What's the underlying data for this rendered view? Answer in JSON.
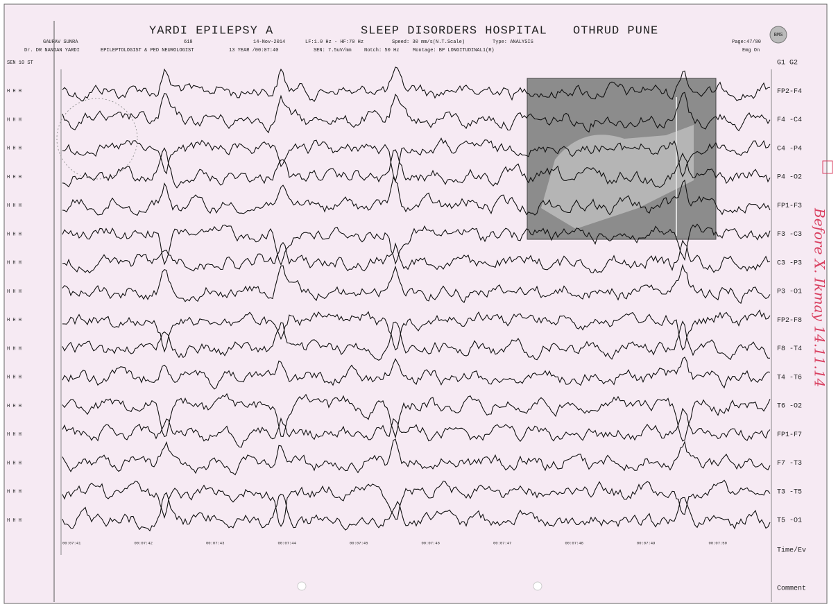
{
  "header": {
    "title": [
      "YARDI EPILEPSY A",
      "SLEEP DISORDERS HOSPITAL",
      "OTHRUD PUNE"
    ],
    "line1": [
      "GAURAV SUNRA",
      "618",
      "14-Nov-2014",
      "LF:1.0 Hz - HF:70 Hz",
      "Speed: 30 mm/s(N.T.Scale)",
      "Type: ANALYSIS",
      "Page:47/80"
    ],
    "line2": [
      "Dr. DR NANDAN YARDI",
      "EPILEPTOLOGIST & PED NEUROLOGIST",
      "13 YEAR /00:07:40",
      "SEN: 7.5uV/mm",
      "Notch: 50 Hz",
      "Montage: BP LONGITUDINAL1(R)",
      "Emg On"
    ],
    "logo": "BMS"
  },
  "left_header": "SEN 10 ST",
  "left_marker": "H  H  H",
  "channels": [
    "G1  G2",
    "FP2-F4",
    "F4 -C4",
    "C4 -P4",
    "P4 -O2",
    "FP1-F3",
    "F3 -C3",
    "C3 -P3",
    "P3 -O1",
    "FP2-F8",
    "F8 -T4",
    "T4 -T6",
    "T6 -O2",
    "FP1-F7",
    "F7 -T3",
    "T3 -T5",
    "T5 -O1",
    "Time/Ev",
    "Comment"
  ],
  "time_labels": [
    "00:07:41",
    "00:07:42",
    "00:07:43",
    "00:07:44",
    "00:07:45",
    "00:07:46",
    "00:07:47",
    "00:07:48",
    "00:07:49",
    "00:07:50"
  ],
  "annotation": "Before X. Ikmay 14.11.14"
}
